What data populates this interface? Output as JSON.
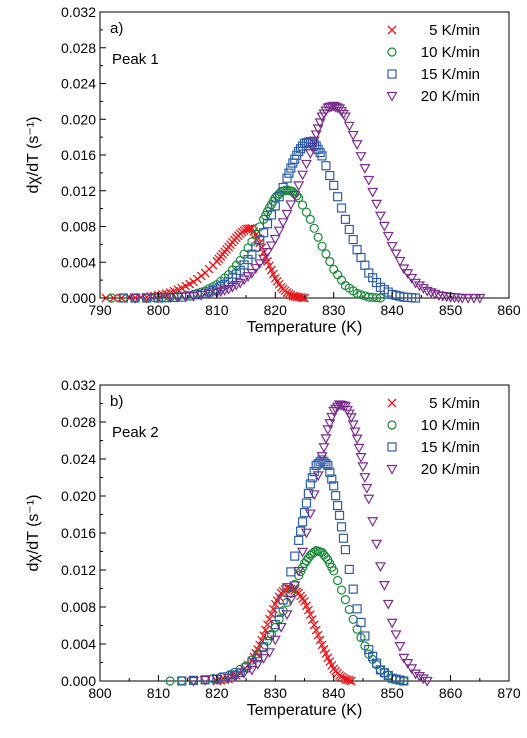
{
  "chart_data": [
    {
      "type": "scatter",
      "panel_label": "a)",
      "annotation": "Peak 1",
      "xlabel": "Temperature (K)",
      "ylabel": "dχ/dT (s⁻¹)",
      "xlim": [
        790,
        860
      ],
      "ylim": [
        0,
        0.032
      ],
      "xticks": [
        "790",
        "800",
        "810",
        "820",
        "830",
        "840",
        "850",
        "860"
      ],
      "yticks": [
        "0.000",
        "0.004",
        "0.008",
        "0.012",
        "0.016",
        "0.020",
        "0.024",
        "0.028",
        "0.032"
      ],
      "legend_position": "top-right",
      "series": [
        {
          "name": "5 K/min",
          "marker": "cross",
          "color": "#e8191c",
          "x": [
            791,
            795,
            798,
            800,
            802,
            804,
            806,
            808,
            810,
            811,
            812,
            813,
            814,
            815,
            816,
            817,
            818,
            819,
            820,
            821,
            822,
            823,
            824,
            825
          ],
          "y": [
            0.0,
            0.0,
            0.0001,
            0.0003,
            0.0006,
            0.0011,
            0.0018,
            0.0028,
            0.0041,
            0.0049,
            0.0057,
            0.0065,
            0.0072,
            0.0077,
            0.0078,
            0.0067,
            0.0051,
            0.0036,
            0.0022,
            0.0012,
            0.0006,
            0.0002,
            0.0001,
            0.0
          ]
        },
        {
          "name": "10 K/min",
          "marker": "circle",
          "color": "#1a8a3a",
          "x": [
            792,
            798,
            802,
            806,
            808,
            810,
            812,
            814,
            816,
            818,
            819,
            820,
            821,
            822,
            823,
            824,
            826,
            828,
            830,
            832,
            834,
            836,
            838
          ],
          "y": [
            0.0,
            0.0,
            0.0001,
            0.0004,
            0.0008,
            0.0015,
            0.0026,
            0.0042,
            0.0063,
            0.0088,
            0.0101,
            0.0112,
            0.0119,
            0.0121,
            0.0119,
            0.0112,
            0.0088,
            0.0058,
            0.0032,
            0.0014,
            0.0005,
            0.0001,
            0.0
          ]
        },
        {
          "name": "15 K/min",
          "marker": "square",
          "color": "#2f5ea8",
          "x": [
            794,
            800,
            804,
            808,
            810,
            812,
            814,
            816,
            818,
            820,
            822,
            823,
            824,
            825,
            826,
            827,
            828,
            830,
            832,
            834,
            836,
            838,
            840,
            842,
            844
          ],
          "y": [
            0.0,
            0.0,
            0.0001,
            0.0005,
            0.001,
            0.0018,
            0.0031,
            0.0049,
            0.0073,
            0.0103,
            0.0134,
            0.0151,
            0.0164,
            0.0173,
            0.0175,
            0.017,
            0.0159,
            0.0126,
            0.0088,
            0.0054,
            0.0028,
            0.0012,
            0.0004,
            0.0001,
            0.0
          ]
        },
        {
          "name": "20 K/min",
          "marker": "triangle-down",
          "color": "#7b2d8e",
          "x": [
            796,
            802,
            806,
            810,
            812,
            814,
            816,
            818,
            820,
            822,
            824,
            826,
            827,
            828,
            829,
            830,
            831,
            832,
            834,
            836,
            838,
            840,
            842,
            844,
            846,
            848,
            850,
            852,
            855
          ],
          "y": [
            0.0,
            0.0001,
            0.0002,
            0.0006,
            0.001,
            0.0017,
            0.0028,
            0.0044,
            0.0066,
            0.0094,
            0.0126,
            0.0162,
            0.0183,
            0.0203,
            0.0213,
            0.0215,
            0.0212,
            0.0203,
            0.0172,
            0.0132,
            0.0092,
            0.0058,
            0.0033,
            0.0017,
            0.0008,
            0.0003,
            0.0001,
            0.0,
            0.0
          ]
        }
      ]
    },
    {
      "type": "scatter",
      "panel_label": "b)",
      "annotation": "Peak 2",
      "xlabel": "Temperature (K)",
      "ylabel": "dχ/dT (s⁻¹)",
      "xlim": [
        800,
        870
      ],
      "ylim": [
        0,
        0.032
      ],
      "xticks": [
        "800",
        "810",
        "820",
        "830",
        "840",
        "850",
        "860",
        "870"
      ],
      "yticks": [
        "0.000",
        "0.004",
        "0.008",
        "0.012",
        "0.016",
        "0.020",
        "0.024",
        "0.028",
        "0.032"
      ],
      "legend_position": "top-right",
      "series": [
        {
          "name": "5 K/min",
          "marker": "cross",
          "color": "#e8191c",
          "x": [
            820,
            822,
            824,
            826,
            827,
            828,
            829,
            830,
            831,
            832,
            833,
            834,
            835,
            836,
            837,
            838,
            839,
            840,
            841,
            842,
            843
          ],
          "y": [
            0.0,
            0.0002,
            0.0008,
            0.0022,
            0.0034,
            0.0049,
            0.0067,
            0.0083,
            0.0095,
            0.0101,
            0.0099,
            0.0095,
            0.0086,
            0.0072,
            0.0055,
            0.0039,
            0.0025,
            0.0013,
            0.0006,
            0.0002,
            0.0
          ]
        },
        {
          "name": "10 K/min",
          "marker": "circle",
          "color": "#1a8a3a",
          "x": [
            812,
            818,
            822,
            825,
            828,
            830,
            832,
            834,
            835,
            836,
            837,
            838,
            839,
            840,
            842,
            844,
            846,
            848,
            850,
            852
          ],
          "y": [
            0.0,
            0.0001,
            0.0006,
            0.0016,
            0.0036,
            0.0058,
            0.0085,
            0.0114,
            0.0127,
            0.0136,
            0.0141,
            0.0139,
            0.0131,
            0.0119,
            0.0088,
            0.0056,
            0.0029,
            0.0012,
            0.0003,
            0.0
          ]
        },
        {
          "name": "15 K/min",
          "marker": "square",
          "color": "#2f5ea8",
          "x": [
            814,
            820,
            824,
            827,
            830,
            832,
            834,
            835,
            836,
            837,
            838,
            839,
            840,
            841,
            842,
            844,
            846,
            848,
            850,
            852
          ],
          "y": [
            0.0,
            0.0002,
            0.0009,
            0.0025,
            0.0061,
            0.0101,
            0.0152,
            0.0182,
            0.0213,
            0.0233,
            0.0239,
            0.0233,
            0.0211,
            0.0179,
            0.0142,
            0.0078,
            0.0034,
            0.0012,
            0.0003,
            0.0
          ]
        },
        {
          "name": "20 K/min",
          "marker": "triangle-down",
          "color": "#7b2d8e",
          "x": [
            816,
            822,
            826,
            829,
            832,
            834,
            836,
            838,
            839,
            840,
            841,
            842,
            843,
            844,
            845,
            846,
            848,
            850,
            852,
            854,
            856
          ],
          "y": [
            0.0,
            0.0003,
            0.0012,
            0.0031,
            0.0072,
            0.0119,
            0.0181,
            0.0243,
            0.0272,
            0.0292,
            0.0299,
            0.0297,
            0.0285,
            0.0262,
            0.0232,
            0.0197,
            0.0124,
            0.0063,
            0.0025,
            0.0008,
            0.0
          ]
        }
      ]
    }
  ]
}
